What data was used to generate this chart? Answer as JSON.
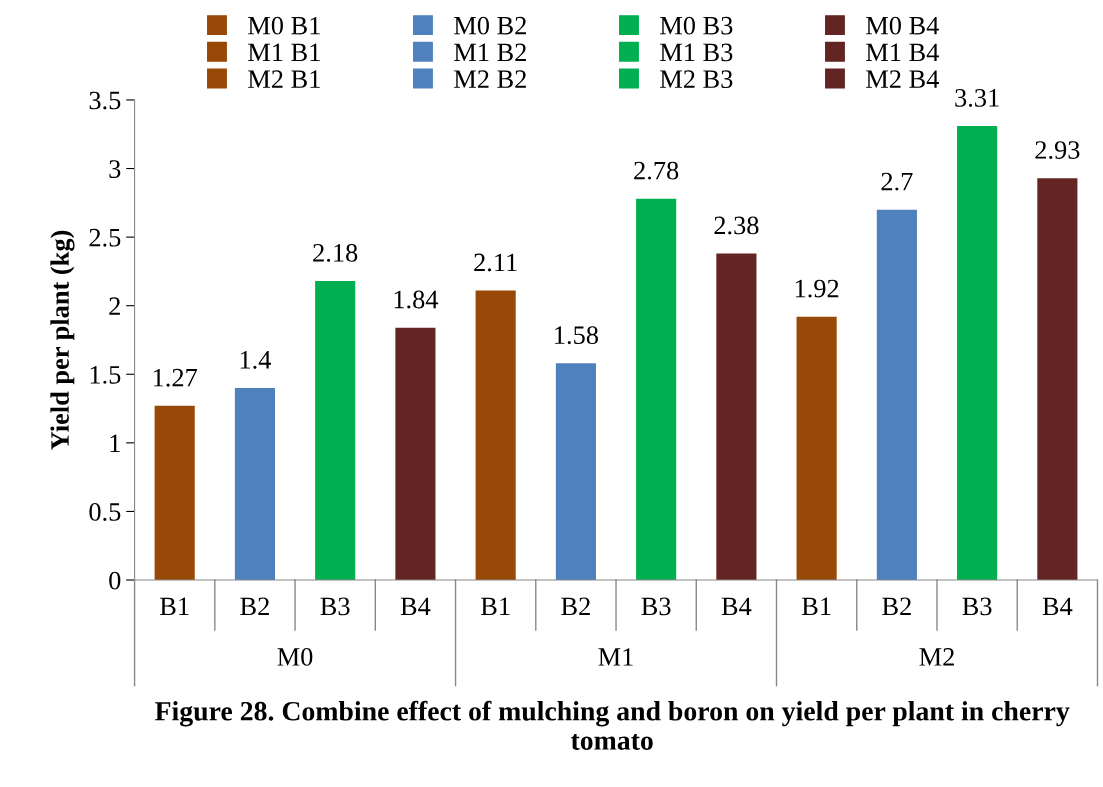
{
  "chart_data": {
    "type": "bar",
    "title": "Figure 28. Combine effect of mulching and boron on yield per plant in cherry tomato",
    "ylabel": "Yield per plant (kg)",
    "categories": [
      "B1",
      "B2",
      "B3",
      "B4",
      "B1",
      "B2",
      "B3",
      "B4",
      "B1",
      "B2",
      "B3",
      "B4"
    ],
    "annotations": [
      "M0",
      "M1",
      "M2"
    ],
    "series": [
      {
        "name": "M0 B1",
        "color": "#984807",
        "values": [
          1.27,
          null,
          null,
          null,
          null,
          null,
          null,
          null,
          null,
          null,
          null,
          null
        ]
      },
      {
        "name": "M0 B2",
        "color": "#4f81bd",
        "values": [
          null,
          1.4,
          null,
          null,
          null,
          null,
          null,
          null,
          null,
          null,
          null,
          null
        ]
      },
      {
        "name": "M0 B3",
        "color": "#00b050",
        "values": [
          null,
          null,
          2.18,
          null,
          null,
          null,
          null,
          null,
          null,
          null,
          null,
          null
        ]
      },
      {
        "name": "M0 B4",
        "color": "#632523",
        "values": [
          null,
          null,
          null,
          1.84,
          null,
          null,
          null,
          null,
          null,
          null,
          null,
          null
        ]
      },
      {
        "name": "M1 B1",
        "color": "#984807",
        "values": [
          null,
          null,
          null,
          null,
          2.11,
          null,
          null,
          null,
          null,
          null,
          null,
          null
        ]
      },
      {
        "name": "M1 B2",
        "color": "#4f81bd",
        "values": [
          null,
          null,
          null,
          null,
          null,
          1.58,
          null,
          null,
          null,
          null,
          null,
          null
        ]
      },
      {
        "name": "M1 B3",
        "color": "#00b050",
        "values": [
          null,
          null,
          null,
          null,
          null,
          null,
          2.78,
          null,
          null,
          null,
          null,
          null
        ]
      },
      {
        "name": "M1 B4",
        "color": "#632523",
        "values": [
          null,
          null,
          null,
          null,
          null,
          null,
          null,
          2.38,
          null,
          null,
          null,
          null
        ]
      },
      {
        "name": "M2 B1",
        "color": "#984807",
        "values": [
          null,
          null,
          null,
          null,
          null,
          null,
          null,
          null,
          1.92,
          null,
          null,
          null
        ]
      },
      {
        "name": "M2 B2",
        "color": "#4f81bd",
        "values": [
          null,
          null,
          null,
          null,
          null,
          null,
          null,
          null,
          null,
          2.7,
          null,
          null
        ]
      },
      {
        "name": "M2 B3",
        "color": "#00b050",
        "values": [
          null,
          null,
          null,
          null,
          null,
          null,
          null,
          null,
          null,
          null,
          3.31,
          null
        ]
      },
      {
        "name": "M2 B4",
        "color": "#632523",
        "values": [
          null,
          null,
          null,
          null,
          null,
          null,
          null,
          null,
          null,
          null,
          null,
          2.93
        ]
      }
    ],
    "ylim": [
      0,
      3.5
    ],
    "yticks": [
      0,
      {
        "value": 0.5,
        "label": "0.5"
      },
      1,
      1.5,
      2,
      2.5,
      3,
      3.5
    ],
    "data_labels": true,
    "grid": false,
    "legend": "top"
  }
}
